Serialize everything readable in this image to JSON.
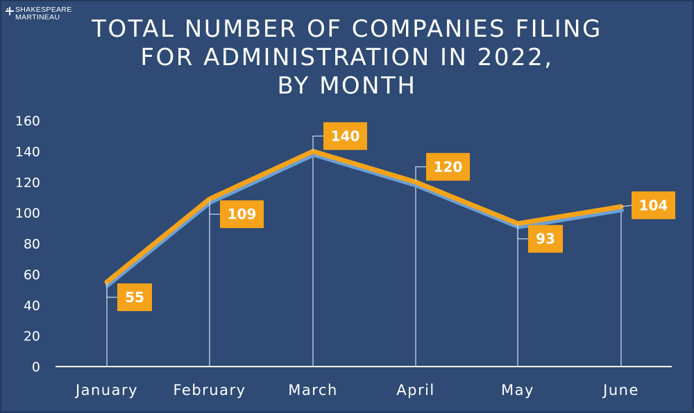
{
  "brand": {
    "line1": "SHAKESPEARE",
    "line2": "MARTINEAU"
  },
  "colors": {
    "background": "#2e4a75",
    "line": "#f5a31a",
    "shadow_line": "#6a9fd6",
    "label_box": "#f5a31a",
    "text": "#ffffff"
  },
  "chart_data": {
    "type": "line",
    "title_lines": [
      "TOTAL NUMBER OF COMPANIES FILING",
      "FOR ADMINISTRATION IN 2022,",
      "BY MONTH"
    ],
    "categories": [
      "January",
      "February",
      "March",
      "April",
      "May",
      "June"
    ],
    "values": [
      55,
      109,
      140,
      120,
      93,
      104
    ],
    "data_labels": [
      "55",
      "109",
      "140",
      "120",
      "93",
      "104"
    ],
    "ylim": [
      0,
      160
    ],
    "yticks": [
      "0",
      "20",
      "40",
      "60",
      "80",
      "100",
      "120",
      "140",
      "160"
    ],
    "grid": false,
    "legend": "none",
    "xlabel": "",
    "ylabel": ""
  }
}
